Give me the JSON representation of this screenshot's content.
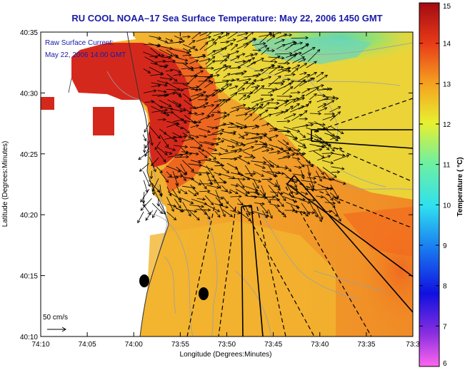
{
  "title": "RU COOL  NOAA–17  Sea Surface Temperature:  May 22, 2006 1450 GMT",
  "current_label": "Raw Surface Current:",
  "current_time": "May 22, 2006 14:00 GMT",
  "scale_label": "50 cm/s",
  "colorbar": {
    "label": "Temperature ( °C)",
    "ticks": [
      "15",
      "14",
      "13",
      "12",
      "11",
      "10",
      "9",
      "8",
      "7",
      "6"
    ]
  },
  "axes": {
    "xlabel": "Longitude (Degrees:Minutes)",
    "ylabel": "Latitude (Degrees:Minutes)",
    "x_ticks": [
      "74:10",
      "74:05",
      "74:00",
      "73:55",
      "73:50",
      "73:45",
      "73:40",
      "73:35",
      "73:3"
    ],
    "y_ticks": [
      "40:35",
      "40:30",
      "40:25",
      "40:20",
      "40:15",
      "40:10"
    ]
  },
  "chart_data": {
    "type": "heatmap",
    "title": "RU COOL  NOAA–17  Sea Surface Temperature:  May 22, 2006 1450 GMT",
    "xlabel": "Longitude (Degrees:Minutes)",
    "ylabel": "Latitude (Degrees:Minutes)",
    "colorbar_range": [
      6,
      15
    ],
    "colorbar_label": "Temperature ( °C)",
    "x_ticks": [
      "74:10",
      "74:05",
      "74:00",
      "73:55",
      "73:50",
      "73:45",
      "73:40",
      "73:35",
      "73:3"
    ],
    "y_ticks": [
      "40:35",
      "40:30",
      "40:25",
      "40:20",
      "40:15",
      "40:10"
    ],
    "markers": 2,
    "vector_scale": "50 cm/s"
  },
  "colors": {
    "title_blue": "#1a1aa8",
    "warm": "#d62a1e",
    "orange": "#f29a20",
    "yellow": "#e6d13a",
    "green": "#9ad85a",
    "cyan": "#4fd6c0"
  }
}
